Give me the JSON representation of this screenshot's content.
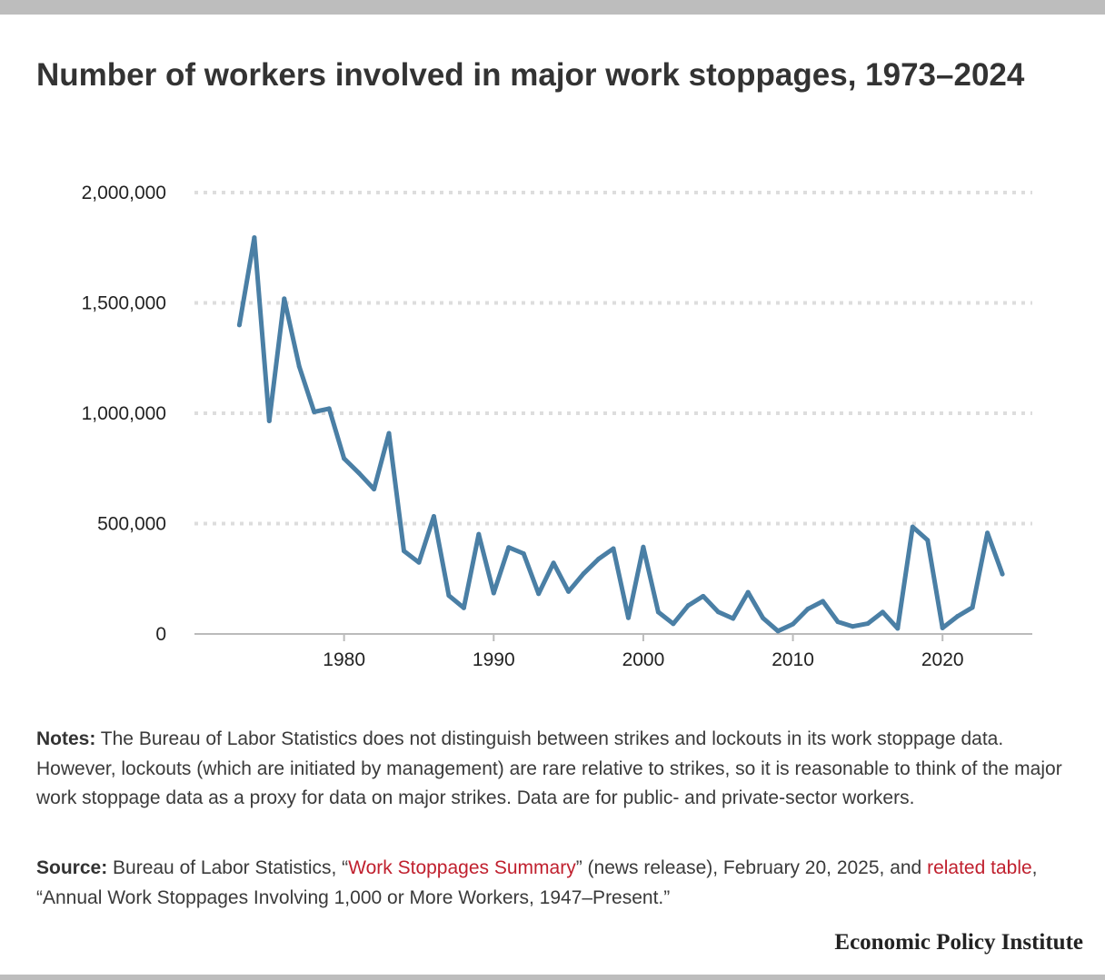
{
  "header": {
    "title": "Number of workers involved in major work stoppages, 1973–2024"
  },
  "colors": {
    "line": "#4a7fa5",
    "gridline": "#dddddd",
    "baseline": "#bbbbbb",
    "link": "#c0202e",
    "bars": "#bdbdbd"
  },
  "chart_data": {
    "type": "line",
    "title": "Number of workers involved in major work stoppages, 1973–2024",
    "xlabel": "",
    "ylabel": "",
    "ylim": [
      0,
      2000000
    ],
    "xlim": [
      1970,
      2026
    ],
    "yticks": [
      0,
      500000,
      1000000,
      1500000,
      2000000
    ],
    "ytick_labels": [
      "0",
      "500,000",
      "1,000,000",
      "1,500,000",
      "2,000,000"
    ],
    "xticks": [
      1980,
      1990,
      2000,
      2010,
      2020
    ],
    "xtick_labels": [
      "1980",
      "1990",
      "2000",
      "2010",
      "2020"
    ],
    "grid": "horizontal dotted",
    "series": [
      {
        "x": [
          1973,
          1974,
          1975,
          1976,
          1977,
          1978,
          1979,
          1980,
          1981,
          1982,
          1983,
          1984,
          1985,
          1986,
          1987,
          1988,
          1989,
          1990,
          1991,
          1992,
          1993,
          1994,
          1995,
          1996,
          1997,
          1998,
          1999,
          2000,
          2001,
          2002,
          2003,
          2004,
          2005,
          2006,
          2007,
          2008,
          2009,
          2010,
          2011,
          2012,
          2013,
          2014,
          2015,
          2016,
          2017,
          2018,
          2019,
          2020,
          2021,
          2022,
          2023,
          2024
        ],
        "values": [
          1400000,
          1796000,
          965000,
          1519000,
          1212000,
          1006000,
          1021000,
          795000,
          729000,
          656000,
          909000,
          376000,
          324000,
          533000,
          174000,
          118000,
          452000,
          185000,
          392000,
          364000,
          182000,
          322000,
          192000,
          273000,
          339000,
          387000,
          73000,
          394000,
          99000,
          46000,
          129000,
          171000,
          100000,
          70000,
          189000,
          72000,
          13000,
          45000,
          113000,
          148000,
          55000,
          34000,
          47000,
          99000,
          25000,
          485000,
          425000,
          27000,
          80000,
          120000,
          458000,
          271000
        ]
      }
    ]
  },
  "notes": {
    "label": "Notes:",
    "text": " The Bureau of Labor Statistics does not distinguish between strikes and lockouts in its work stoppage data. However, lockouts (which are initiated by management) are rare relative to strikes, so it is reasonable to think of the major work stoppage data as a proxy for data on major strikes. Data are for public- and private-sector workers."
  },
  "source": {
    "label": "Source:",
    "text1": " Bureau of Labor Statistics, “",
    "link1": "Work Stoppages Summary",
    "text2": "” (news release), February 20, 2025, and ",
    "link2": "related table",
    "text3": ", “Annual Work Stoppages Involving 1,000 or More Workers, 1947–Present.”"
  },
  "footer": {
    "brand": "Economic Policy Institute"
  }
}
